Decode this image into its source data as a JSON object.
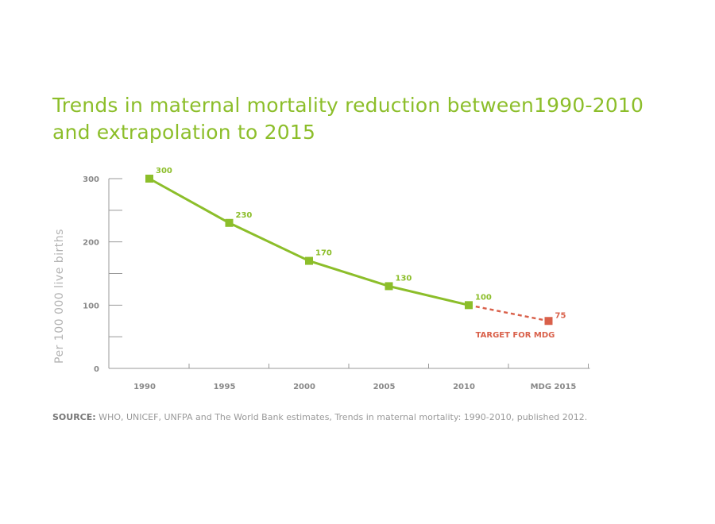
{
  "chart_data": {
    "type": "line",
    "title_lines": [
      "Trends in maternal mortality reduction between1990-2010",
      "and extrapolation to 2015"
    ],
    "ylabel": "Per 100 000 live births",
    "xlabel": "",
    "categories": [
      "1990",
      "1995",
      "2000",
      "2005",
      "2010",
      "MDG 2015"
    ],
    "ylim": [
      0,
      300
    ],
    "yticks": [
      0,
      100,
      200,
      300
    ],
    "series": [
      {
        "values": [
          300,
          230,
          170,
          130,
          100,
          null
        ],
        "color": "#8cbe2a",
        "style": "solid"
      },
      {
        "values": [
          null,
          null,
          null,
          null,
          100,
          75
        ],
        "color": "#d9604a",
        "style": "dashed"
      }
    ],
    "data_labels": [
      "300",
      "230",
      "170",
      "130",
      "100",
      "75"
    ],
    "annotation": "TARGET FOR MDG",
    "grid": false,
    "legend": "none"
  },
  "source": {
    "label": "SOURCE:",
    "text": " WHO, UNICEF, UNFPA and The World Bank estimates, Trends in maternal mortality: 1990-2010, published 2012."
  }
}
